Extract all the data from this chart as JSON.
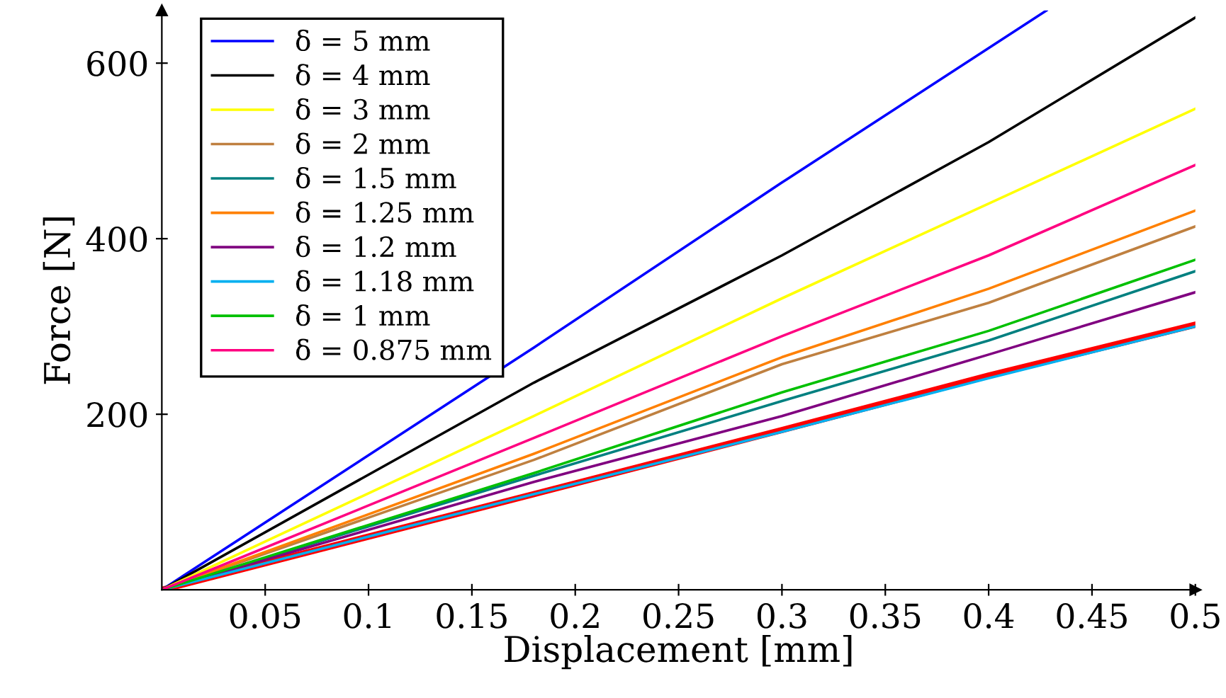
{
  "chart_data": {
    "type": "line",
    "xlabel": "Displacement [mm]",
    "ylabel": "Force [N]",
    "xlim": [
      0,
      0.5
    ],
    "ylim": [
      0,
      660
    ],
    "xticks": [
      0.05,
      0.1,
      0.15,
      0.2,
      0.25,
      0.3,
      0.35,
      0.4,
      0.45,
      0.5
    ],
    "yticks": [
      200,
      400,
      600
    ],
    "grid": false,
    "legend": "top left",
    "marker": "none",
    "line_style": "solid",
    "x": [
      0,
      0.18,
      0.3,
      0.4,
      0.5
    ],
    "series": [
      {
        "color": "#ff0000",
        "values": [
          0,
          109,
          182,
          244,
          302
        ]
      },
      {
        "name": "δ = 5 mm",
        "color": "#0000ff",
        "x": [
          0,
          0.18,
          0.3,
          0.428
        ],
        "values": [
          0,
          276,
          464,
          660
        ]
      },
      {
        "name": "δ = 4 mm",
        "color": "#000000",
        "values": [
          0,
          236,
          381,
          510,
          652
        ]
      },
      {
        "name": "δ = 3 mm",
        "color": "#ffff00",
        "values": [
          0,
          198,
          332,
          440,
          548
        ]
      },
      {
        "name": "δ = 2 mm",
        "color": "#bf8040",
        "values": [
          0,
          148,
          257,
          327,
          414
        ]
      },
      {
        "name": "δ = 1.5 mm",
        "color": "#008080",
        "values": [
          0,
          130,
          215,
          284,
          363
        ]
      },
      {
        "name": "δ = 1.25 mm",
        "color": "#ff8000",
        "values": [
          0,
          155,
          265,
          343,
          432
        ]
      },
      {
        "name": "δ = 1.2 mm",
        "color": "#800080",
        "values": [
          0,
          123,
          198,
          268,
          339
        ]
      },
      {
        "name": "δ = 1.18 mm",
        "color": "#00b0f0",
        "values": [
          0,
          109,
          180,
          241,
          300
        ]
      },
      {
        "name": "δ = 1 mm",
        "color": "#00c000",
        "values": [
          0,
          133,
          225,
          295,
          376
        ]
      },
      {
        "name": "δ = 0.875 mm",
        "color": "#ff0080",
        "values": [
          0,
          173,
          289,
          381,
          484
        ]
      }
    ]
  }
}
